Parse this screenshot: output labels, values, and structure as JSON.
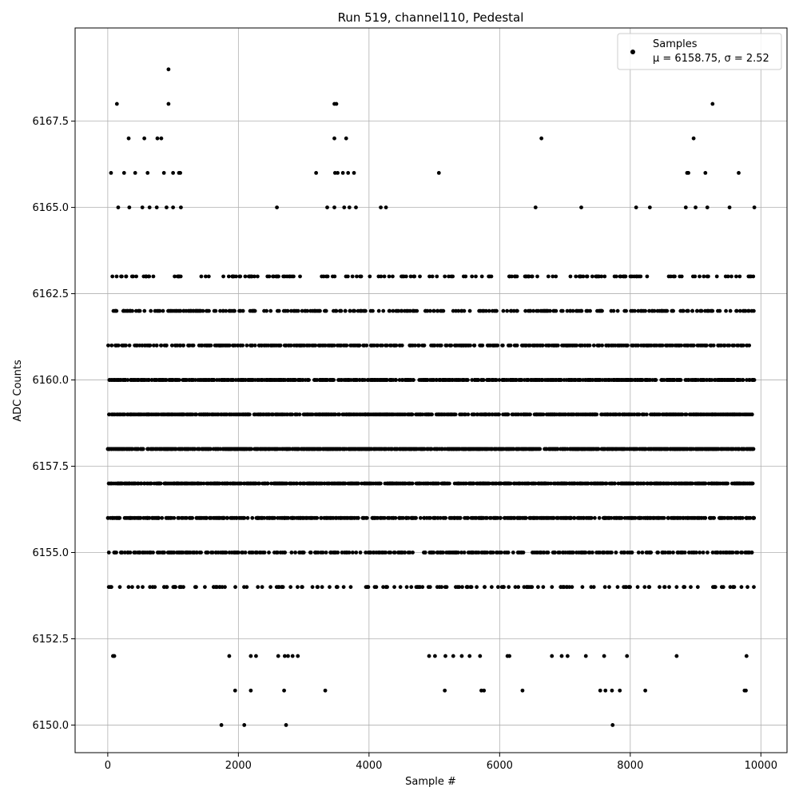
{
  "chart_data": {
    "type": "scatter",
    "title": "Run 519, channel110, Pedestal",
    "xlabel": "Sample #",
    "ylabel": "ADC Counts",
    "xlim": [
      -500,
      10400
    ],
    "ylim": [
      6149.2,
      6170.2
    ],
    "x_ticks": [
      0,
      2000,
      4000,
      6000,
      8000,
      10000
    ],
    "x_tick_labels": [
      "0",
      "2000",
      "4000",
      "6000",
      "8000",
      "10000"
    ],
    "y_ticks": [
      6150.0,
      6152.5,
      6155.0,
      6157.5,
      6160.0,
      6162.5,
      6165.0,
      6167.5
    ],
    "y_tick_labels": [
      "6150.0",
      "6152.5",
      "6155.0",
      "6157.5",
      "6160.0",
      "6162.5",
      "6165.0",
      "6167.5"
    ],
    "grid": true,
    "legend": {
      "placement": "top-right",
      "entries": [
        {
          "line1": "Samples",
          "line2": "μ = 6158.75, σ = 2.52"
        }
      ]
    },
    "series": [
      {
        "name": "Samples",
        "color": "#000000",
        "n_samples": 9900,
        "band_densities": [
          {
            "y": 6150,
            "p": 0.0003
          },
          {
            "y": 6151,
            "p": 0.0015
          },
          {
            "y": 6152,
            "p": 0.004
          },
          {
            "y": 6153,
            "p": 0.011
          },
          {
            "y": 6154,
            "p": 0.035
          },
          {
            "y": 6155,
            "p": 0.07
          },
          {
            "y": 6156,
            "p": 0.11
          },
          {
            "y": 6157,
            "p": 0.145
          },
          {
            "y": 6158,
            "p": 0.16
          },
          {
            "y": 6159,
            "p": 0.155
          },
          {
            "y": 6160,
            "p": 0.13
          },
          {
            "y": 6161,
            "p": 0.09
          },
          {
            "y": 6162,
            "p": 0.05
          },
          {
            "y": 6163,
            "p": 0.025
          },
          {
            "y": 6164,
            "p": 0.009
          },
          {
            "y": 6165,
            "p": 0.003
          },
          {
            "y": 6166,
            "p": 0.001
          },
          {
            "y": 6167,
            "p": 0.0004
          },
          {
            "y": 6168,
            "p": 0.0002
          },
          {
            "y": 6169,
            "p": 0.0001
          }
        ],
        "points": [
          [
            930,
            6169
          ],
          [
            140,
            6168
          ],
          [
            930,
            6168
          ],
          [
            3470,
            6168
          ],
          [
            3500,
            6168
          ],
          [
            9260,
            6168
          ],
          [
            320,
            6167
          ],
          [
            560,
            6167
          ],
          [
            760,
            6167
          ],
          [
            820,
            6167
          ],
          [
            3470,
            6167
          ],
          [
            3650,
            6167
          ],
          [
            6640,
            6167
          ],
          [
            8970,
            6167
          ],
          [
            50,
            6166
          ],
          [
            250,
            6166
          ],
          [
            420,
            6166
          ],
          [
            610,
            6166
          ],
          [
            860,
            6166
          ],
          [
            1000,
            6166
          ],
          [
            1090,
            6166
          ],
          [
            1110,
            6166
          ],
          [
            3190,
            6166
          ],
          [
            3480,
            6166
          ],
          [
            3520,
            6166
          ],
          [
            3600,
            6166
          ],
          [
            3680,
            6166
          ],
          [
            3770,
            6166
          ],
          [
            5070,
            6166
          ],
          [
            8870,
            6166
          ],
          [
            8890,
            6166
          ],
          [
            9150,
            6166
          ],
          [
            9660,
            6166
          ],
          [
            160,
            6165
          ],
          [
            330,
            6165
          ],
          [
            530,
            6165
          ],
          [
            640,
            6165
          ],
          [
            750,
            6165
          ],
          [
            900,
            6165
          ],
          [
            1000,
            6165
          ],
          [
            1120,
            6165
          ],
          [
            2590,
            6165
          ],
          [
            3360,
            6165
          ],
          [
            3470,
            6165
          ],
          [
            3620,
            6165
          ],
          [
            3700,
            6165
          ],
          [
            3800,
            6165
          ],
          [
            4180,
            6165
          ],
          [
            4260,
            6165
          ],
          [
            6550,
            6165
          ],
          [
            7250,
            6165
          ],
          [
            8090,
            6165
          ],
          [
            8300,
            6165
          ],
          [
            8850,
            6165
          ],
          [
            9000,
            6165
          ],
          [
            9180,
            6165
          ],
          [
            9520,
            6165
          ],
          [
            9900,
            6165
          ],
          [
            1740,
            6150
          ],
          [
            2090,
            6150
          ],
          [
            2730,
            6150
          ],
          [
            7730,
            6150
          ],
          [
            1950,
            6151
          ],
          [
            2190,
            6151
          ],
          [
            2700,
            6151
          ],
          [
            3330,
            6151
          ],
          [
            5160,
            6151
          ],
          [
            5720,
            6151
          ],
          [
            5760,
            6151
          ],
          [
            6350,
            6151
          ],
          [
            7540,
            6151
          ],
          [
            7620,
            6151
          ],
          [
            7720,
            6151
          ],
          [
            7840,
            6151
          ],
          [
            8230,
            6151
          ],
          [
            9750,
            6151
          ],
          [
            9770,
            6151
          ],
          [
            80,
            6152
          ],
          [
            100,
            6152
          ],
          [
            1860,
            6152
          ],
          [
            2190,
            6152
          ],
          [
            2270,
            6152
          ],
          [
            2610,
            6152
          ],
          [
            2710,
            6152
          ],
          [
            2760,
            6152
          ],
          [
            2830,
            6152
          ],
          [
            2910,
            6152
          ],
          [
            4920,
            6152
          ],
          [
            5010,
            6152
          ],
          [
            5170,
            6152
          ],
          [
            5290,
            6152
          ],
          [
            5420,
            6152
          ],
          [
            5540,
            6152
          ],
          [
            5700,
            6152
          ],
          [
            6120,
            6152
          ],
          [
            6150,
            6152
          ],
          [
            6800,
            6152
          ],
          [
            6950,
            6152
          ],
          [
            7040,
            6152
          ],
          [
            7320,
            6152
          ],
          [
            7600,
            6152
          ],
          [
            7950,
            6152
          ],
          [
            8710,
            6152
          ],
          [
            9780,
            6152
          ]
        ]
      }
    ]
  }
}
